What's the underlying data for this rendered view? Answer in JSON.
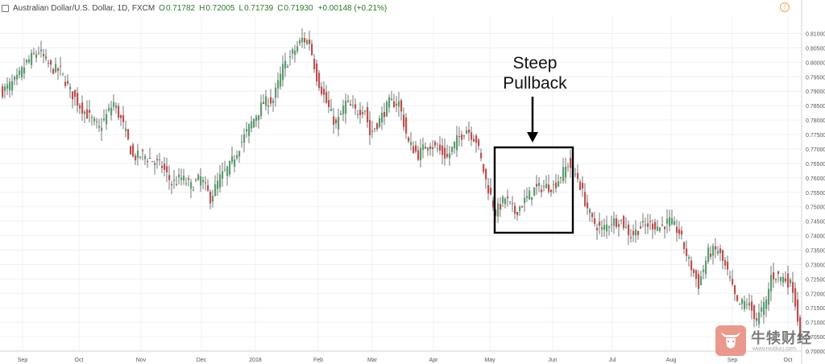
{
  "header": {
    "symbol": "Australian Dollar/U.S. Dollar, 1D, FXCM",
    "open_label": "O",
    "open": "0.71782",
    "high_label": "H",
    "high": "0.72005",
    "low_label": "L",
    "low": "0.71739",
    "close_label": "C",
    "close": "0.71930",
    "change": "+0.00148 (+0.21%)"
  },
  "annotation": {
    "line1": "Steep",
    "line2": "Pullback"
  },
  "watermark": {
    "brand": "牛犊财经",
    "url": "www.niuducj.com"
  },
  "colors": {
    "up": "#5a9e6f",
    "down": "#c0504d",
    "grid": "#eef0f3",
    "axis_text": "#555555",
    "box": "#000000"
  },
  "chart_data": {
    "type": "candlestick",
    "ylim": [
      0.7,
      0.816
    ],
    "y_ticks": [
      "0.81000",
      "0.80500",
      "0.80000",
      "0.79500",
      "0.79000",
      "0.78500",
      "0.78000",
      "0.77500",
      "0.77000",
      "0.76500",
      "0.76000",
      "0.75500",
      "0.75000",
      "0.74500",
      "0.74000",
      "0.73500",
      "0.73000",
      "0.72500",
      "0.72000",
      "0.71500",
      "0.71000",
      "0.70500",
      "0.70000"
    ],
    "x_ticks": [
      "Sep",
      "Oct",
      "Nov",
      "Dec",
      "2018",
      "Feb",
      "Mar",
      "Apr",
      "May",
      "Jun",
      "Jul",
      "Aug",
      "Sep",
      "Oct"
    ],
    "anchors": [
      [
        0,
        0.79
      ],
      [
        6,
        0.794
      ],
      [
        10,
        0.8
      ],
      [
        15,
        0.804
      ],
      [
        20,
        0.798
      ],
      [
        24,
        0.797
      ],
      [
        28,
        0.79
      ],
      [
        32,
        0.785
      ],
      [
        36,
        0.781
      ],
      [
        40,
        0.777
      ],
      [
        46,
        0.786
      ],
      [
        50,
        0.778
      ],
      [
        54,
        0.767
      ],
      [
        58,
        0.768
      ],
      [
        62,
        0.766
      ],
      [
        66,
        0.764
      ],
      [
        70,
        0.758
      ],
      [
        74,
        0.76
      ],
      [
        78,
        0.757
      ],
      [
        82,
        0.76
      ],
      [
        86,
        0.753
      ],
      [
        90,
        0.76
      ],
      [
        94,
        0.764
      ],
      [
        98,
        0.771
      ],
      [
        103,
        0.779
      ],
      [
        108,
        0.786
      ],
      [
        112,
        0.787
      ],
      [
        116,
        0.798
      ],
      [
        120,
        0.803
      ],
      [
        124,
        0.808
      ],
      [
        127,
        0.807
      ],
      [
        130,
        0.795
      ],
      [
        134,
        0.786
      ],
      [
        138,
        0.778
      ],
      [
        142,
        0.786
      ],
      [
        146,
        0.783
      ],
      [
        150,
        0.784
      ],
      [
        152,
        0.775
      ],
      [
        156,
        0.78
      ],
      [
        160,
        0.786
      ],
      [
        164,
        0.786
      ],
      [
        168,
        0.772
      ],
      [
        172,
        0.768
      ],
      [
        176,
        0.772
      ],
      [
        180,
        0.77
      ],
      [
        184,
        0.767
      ],
      [
        188,
        0.773
      ],
      [
        192,
        0.777
      ],
      [
        196,
        0.773
      ],
      [
        200,
        0.759
      ],
      [
        204,
        0.748
      ],
      [
        208,
        0.753
      ],
      [
        212,
        0.748
      ],
      [
        216,
        0.752
      ],
      [
        220,
        0.756
      ],
      [
        224,
        0.757
      ],
      [
        228,
        0.757
      ],
      [
        232,
        0.762
      ],
      [
        234,
        0.765
      ],
      [
        238,
        0.76
      ],
      [
        241,
        0.752
      ],
      [
        244,
        0.745
      ],
      [
        248,
        0.742
      ],
      [
        252,
        0.745
      ],
      [
        256,
        0.745
      ],
      [
        260,
        0.74
      ],
      [
        264,
        0.743
      ],
      [
        268,
        0.744
      ],
      [
        272,
        0.743
      ],
      [
        276,
        0.745
      ],
      [
        280,
        0.741
      ],
      [
        284,
        0.731
      ],
      [
        288,
        0.723
      ],
      [
        292,
        0.734
      ],
      [
        296,
        0.735
      ],
      [
        300,
        0.727
      ],
      [
        304,
        0.716
      ],
      [
        308,
        0.717
      ],
      [
        312,
        0.711
      ],
      [
        316,
        0.717
      ],
      [
        318,
        0.726
      ],
      [
        321,
        0.726
      ],
      [
        324,
        0.725
      ],
      [
        327,
        0.722
      ],
      [
        330,
        0.706
      ]
    ],
    "seed": 7
  }
}
